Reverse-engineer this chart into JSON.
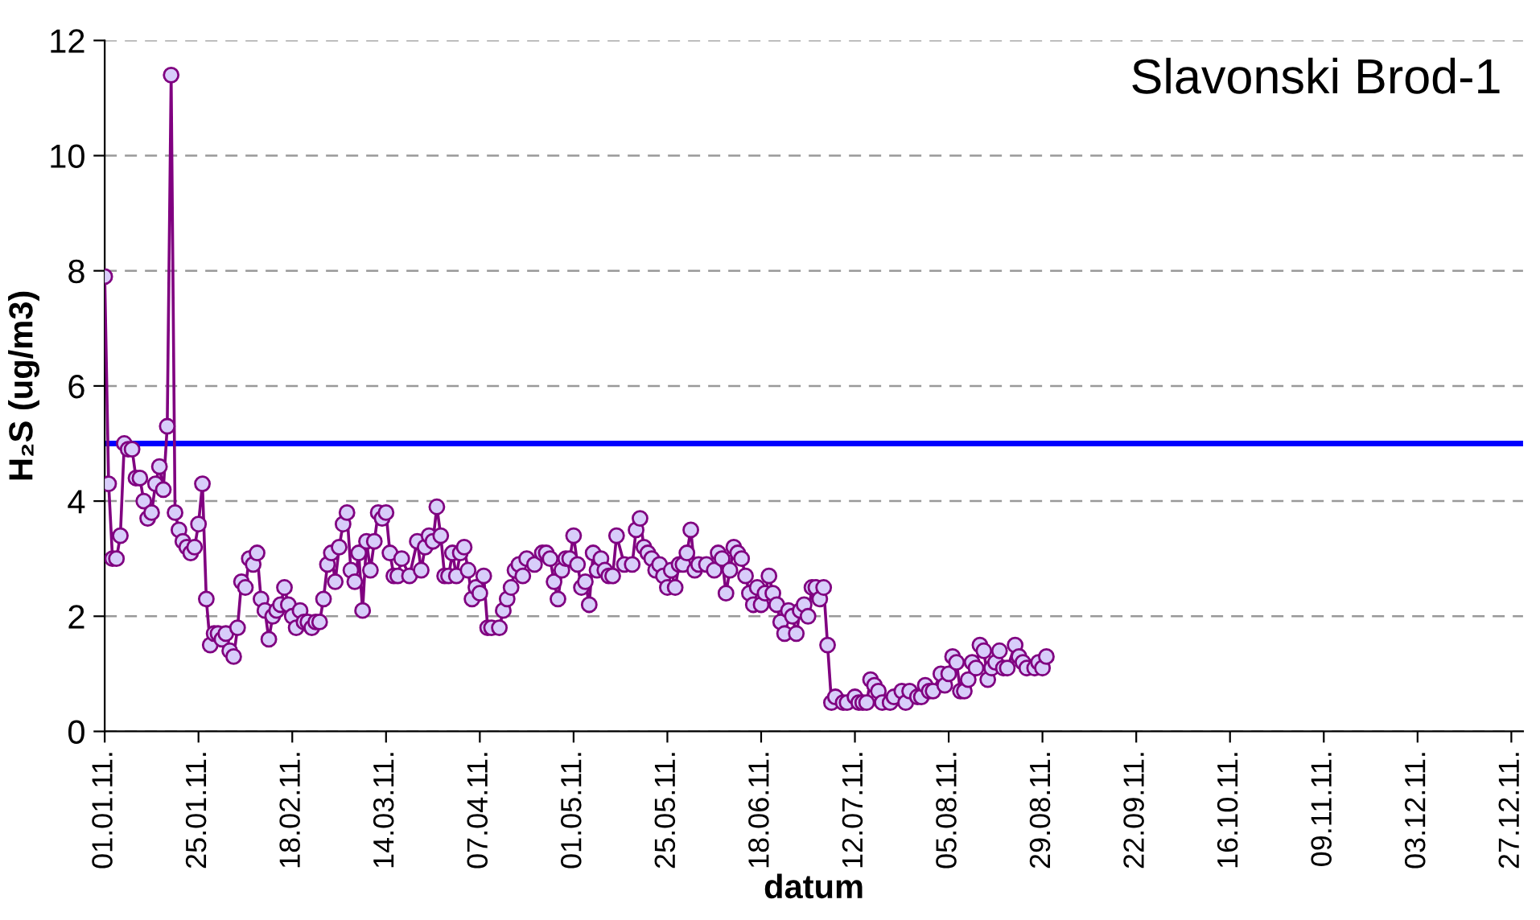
{
  "chart_data": {
    "type": "line",
    "title": "Slavonski Brod-1",
    "xlabel": "datum",
    "ylabel": "H₂S (ug/m3)",
    "xlim": [
      "2011-01-01",
      "2011-12-30"
    ],
    "xticks": [
      {
        "value": "2011-01-01",
        "label": "01.01.11."
      },
      {
        "value": "2011-01-25",
        "label": "25.01.11."
      },
      {
        "value": "2011-02-18",
        "label": "18.02.11."
      },
      {
        "value": "2011-03-14",
        "label": "14.03.11."
      },
      {
        "value": "2011-04-07",
        "label": "07.04.11."
      },
      {
        "value": "2011-05-01",
        "label": "01.05.11."
      },
      {
        "value": "2011-05-25",
        "label": "25.05.11."
      },
      {
        "value": "2011-06-18",
        "label": "18.06.11."
      },
      {
        "value": "2011-07-12",
        "label": "12.07.11."
      },
      {
        "value": "2011-08-05",
        "label": "05.08.11."
      },
      {
        "value": "2011-08-29",
        "label": "29.08.11."
      },
      {
        "value": "2011-09-22",
        "label": "22.09.11."
      },
      {
        "value": "2011-10-16",
        "label": "16.10.11."
      },
      {
        "value": "2011-11-09",
        "label": "09.11.11."
      },
      {
        "value": "2011-12-03",
        "label": "03.12.11."
      },
      {
        "value": "2011-12-27",
        "label": "27.12.11."
      }
    ],
    "ylim": [
      0,
      12
    ],
    "yticks": [
      0,
      2,
      4,
      6,
      8,
      10,
      12
    ],
    "grid": "y",
    "legend": false,
    "marker": "circle",
    "line_style": "solid",
    "ref_lines": [
      {
        "axis": "y",
        "value": 5,
        "color": "#0000ff",
        "line_style": "solid"
      }
    ],
    "series": [
      {
        "color": "#800080",
        "x": [
          "2011-01-01",
          "2011-01-02",
          "2011-01-03",
          "2011-01-04",
          "2011-01-05",
          "2011-01-06",
          "2011-01-07",
          "2011-01-08",
          "2011-01-09",
          "2011-01-10",
          "2011-01-11",
          "2011-01-12",
          "2011-01-13",
          "2011-01-14",
          "2011-01-15",
          "2011-01-16",
          "2011-01-17",
          "2011-01-18",
          "2011-01-19",
          "2011-01-20",
          "2011-01-21",
          "2011-01-22",
          "2011-01-23",
          "2011-01-24",
          "2011-01-25",
          "2011-01-26",
          "2011-01-27",
          "2011-01-28",
          "2011-01-29",
          "2011-01-30",
          "2011-01-31",
          "2011-02-01",
          "2011-02-02",
          "2011-02-03",
          "2011-02-04",
          "2011-02-05",
          "2011-02-06",
          "2011-02-07",
          "2011-02-08",
          "2011-02-09",
          "2011-02-10",
          "2011-02-11",
          "2011-02-12",
          "2011-02-13",
          "2011-02-14",
          "2011-02-15",
          "2011-02-16",
          "2011-02-17",
          "2011-02-18",
          "2011-02-19",
          "2011-02-20",
          "2011-02-21",
          "2011-02-22",
          "2011-02-23",
          "2011-02-24",
          "2011-02-25",
          "2011-02-26",
          "2011-02-27",
          "2011-02-28",
          "2011-03-01",
          "2011-03-02",
          "2011-03-03",
          "2011-03-04",
          "2011-03-05",
          "2011-03-06",
          "2011-03-07",
          "2011-03-08",
          "2011-03-09",
          "2011-03-10",
          "2011-03-11",
          "2011-03-12",
          "2011-03-13",
          "2011-03-14",
          "2011-03-15",
          "2011-03-16",
          "2011-03-17",
          "2011-03-18",
          "2011-03-20",
          "2011-03-22",
          "2011-03-23",
          "2011-03-24",
          "2011-03-25",
          "2011-03-26",
          "2011-03-27",
          "2011-03-28",
          "2011-03-29",
          "2011-03-30",
          "2011-03-31",
          "2011-04-01",
          "2011-04-02",
          "2011-04-03",
          "2011-04-04",
          "2011-04-05",
          "2011-04-06",
          "2011-04-07",
          "2011-04-08",
          "2011-04-09",
          "2011-04-10",
          "2011-04-12",
          "2011-04-13",
          "2011-04-14",
          "2011-04-15",
          "2011-04-16",
          "2011-04-17",
          "2011-04-18",
          "2011-04-19",
          "2011-04-21",
          "2011-04-23",
          "2011-04-24",
          "2011-04-25",
          "2011-04-26",
          "2011-04-27",
          "2011-04-28",
          "2011-04-29",
          "2011-04-30",
          "2011-05-01",
          "2011-05-02",
          "2011-05-03",
          "2011-05-04",
          "2011-05-05",
          "2011-05-06",
          "2011-05-07",
          "2011-05-08",
          "2011-05-09",
          "2011-05-10",
          "2011-05-11",
          "2011-05-12",
          "2011-05-14",
          "2011-05-16",
          "2011-05-17",
          "2011-05-18",
          "2011-05-19",
          "2011-05-20",
          "2011-05-21",
          "2011-05-22",
          "2011-05-23",
          "2011-05-24",
          "2011-05-25",
          "2011-05-26",
          "2011-05-27",
          "2011-05-28",
          "2011-05-29",
          "2011-05-30",
          "2011-05-31",
          "2011-06-01",
          "2011-06-02",
          "2011-06-04",
          "2011-06-06",
          "2011-06-07",
          "2011-06-08",
          "2011-06-09",
          "2011-06-10",
          "2011-06-11",
          "2011-06-12",
          "2011-06-13",
          "2011-06-14",
          "2011-06-15",
          "2011-06-16",
          "2011-06-17",
          "2011-06-18",
          "2011-06-19",
          "2011-06-20",
          "2011-06-21",
          "2011-06-22",
          "2011-06-23",
          "2011-06-24",
          "2011-06-25",
          "2011-06-26",
          "2011-06-27",
          "2011-06-28",
          "2011-06-29",
          "2011-06-30",
          "2011-07-01",
          "2011-07-02",
          "2011-07-03",
          "2011-07-04",
          "2011-07-05",
          "2011-07-06",
          "2011-07-07",
          "2011-07-09",
          "2011-07-10",
          "2011-07-12",
          "2011-07-13",
          "2011-07-14",
          "2011-07-15",
          "2011-07-16",
          "2011-07-17",
          "2011-07-18",
          "2011-07-19",
          "2011-07-21",
          "2011-07-22",
          "2011-07-24",
          "2011-07-25",
          "2011-07-26",
          "2011-07-28",
          "2011-07-29",
          "2011-07-30",
          "2011-07-31",
          "2011-08-01",
          "2011-08-03",
          "2011-08-04",
          "2011-08-05",
          "2011-08-06",
          "2011-08-07",
          "2011-08-08",
          "2011-08-09",
          "2011-08-10",
          "2011-08-11",
          "2011-08-12",
          "2011-08-13",
          "2011-08-14",
          "2011-08-15",
          "2011-08-16",
          "2011-08-17",
          "2011-08-18",
          "2011-08-19",
          "2011-08-20",
          "2011-08-22",
          "2011-08-23",
          "2011-08-24",
          "2011-08-25",
          "2011-08-27",
          "2011-08-28",
          "2011-08-29",
          "2011-08-30"
        ],
        "values": [
          7.9,
          4.3,
          3.0,
          3.0,
          3.4,
          5.0,
          4.9,
          4.9,
          4.4,
          4.4,
          4.0,
          3.7,
          3.8,
          4.3,
          4.6,
          4.2,
          5.3,
          11.4,
          3.8,
          3.5,
          3.3,
          3.2,
          3.1,
          3.2,
          3.6,
          4.3,
          2.3,
          1.5,
          1.7,
          1.7,
          1.6,
          1.7,
          1.4,
          1.3,
          1.8,
          2.6,
          2.5,
          3.0,
          2.9,
          3.1,
          2.3,
          2.1,
          1.6,
          2.0,
          2.1,
          2.2,
          2.5,
          2.2,
          2.0,
          1.8,
          2.1,
          1.9,
          1.9,
          1.8,
          1.9,
          1.9,
          2.3,
          2.9,
          3.1,
          2.6,
          3.2,
          3.6,
          3.8,
          2.8,
          2.6,
          3.1,
          2.1,
          3.3,
          2.8,
          3.3,
          3.8,
          3.7,
          3.8,
          3.1,
          2.7,
          2.7,
          3.0,
          2.7,
          3.3,
          2.8,
          3.2,
          3.4,
          3.3,
          3.9,
          3.4,
          2.7,
          2.7,
          3.1,
          2.7,
          3.1,
          3.2,
          2.8,
          2.3,
          2.5,
          2.4,
          2.7,
          1.8,
          1.8,
          1.8,
          2.1,
          2.3,
          2.5,
          2.8,
          2.9,
          2.7,
          3.0,
          2.9,
          3.1,
          3.1,
          3.0,
          2.6,
          2.3,
          2.8,
          3.0,
          3.0,
          3.4,
          2.9,
          2.5,
          2.6,
          2.2,
          3.1,
          2.8,
          3.0,
          2.8,
          2.7,
          2.7,
          3.4,
          2.9,
          2.9,
          3.5,
          3.7,
          3.2,
          3.1,
          3.0,
          2.8,
          2.9,
          2.7,
          2.5,
          2.8,
          2.5,
          2.9,
          2.9,
          3.1,
          3.5,
          2.8,
          2.9,
          2.9,
          2.8,
          3.1,
          3.0,
          2.4,
          2.8,
          3.2,
          3.1,
          3.0,
          2.7,
          2.4,
          2.2,
          2.5,
          2.2,
          2.4,
          2.7,
          2.4,
          2.2,
          1.9,
          1.7,
          2.1,
          2.0,
          1.7,
          2.1,
          2.2,
          2.0,
          2.5,
          2.5,
          2.3,
          2.5,
          1.5,
          0.5,
          0.6,
          0.5,
          0.5,
          0.6,
          0.5,
          0.5,
          0.5,
          0.9,
          0.8,
          0.7,
          0.5,
          0.5,
          0.6,
          0.7,
          0.5,
          0.7,
          0.6,
          0.6,
          0.8,
          0.7,
          0.7,
          1.0,
          0.8,
          1.0,
          1.3,
          1.2,
          0.7,
          0.7,
          0.9,
          1.2,
          1.1,
          1.5,
          1.4,
          0.9,
          1.1,
          1.2,
          1.4,
          1.1,
          1.1,
          1.5,
          1.3,
          1.2,
          1.1,
          1.1,
          1.2,
          1.1,
          1.3
        ]
      }
    ]
  }
}
